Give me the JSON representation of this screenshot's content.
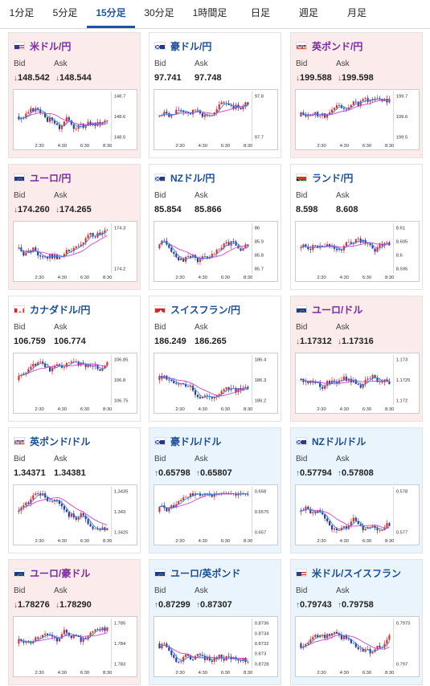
{
  "tabs": [
    {
      "label": "1分足",
      "active": false
    },
    {
      "label": "5分足",
      "active": false
    },
    {
      "label": "15分足",
      "active": true
    },
    {
      "label": "30分足",
      "active": false
    },
    {
      "label": "1時間足",
      "active": false
    },
    {
      "label": "日足",
      "active": false
    },
    {
      "label": "週足",
      "active": false
    },
    {
      "label": "月足",
      "active": false
    }
  ],
  "bid_label": "Bid",
  "ask_label": "Ask",
  "x_ticks": [
    "2:30",
    "4:30",
    "6:30",
    "8:30"
  ],
  "cards": [
    {
      "pair": "米ドル/円",
      "flag": "us-jp",
      "trend": "down",
      "bid": "148.542",
      "ask": "148.544",
      "y_ticks": [
        "148.7",
        "148.6",
        "148.5"
      ],
      "seed": 3,
      "drift": 0.2
    },
    {
      "pair": "豪ドル/円",
      "flag": "au-jp",
      "trend": "flat",
      "bid": "97.741",
      "ask": "97.748",
      "y_ticks": [
        "97.8",
        "97.7"
      ],
      "seed": 7,
      "drift": 0.8
    },
    {
      "pair": "英ポンド/円",
      "flag": "uk-jp",
      "trend": "down",
      "bid": "199.588",
      "ask": "199.598",
      "y_ticks": [
        "199.7",
        "199.6",
        "199.5"
      ],
      "seed": 11,
      "drift": 0.3
    },
    {
      "pair": "ユーロ/円",
      "flag": "eu-jp",
      "trend": "down",
      "bid": "174.260",
      "ask": "174.265",
      "y_ticks": [
        "174.3",
        "174.2"
      ],
      "seed": 13,
      "drift": 0.0
    },
    {
      "pair": "NZドル/円",
      "flag": "nz-jp",
      "trend": "flat",
      "bid": "85.854",
      "ask": "85.866",
      "y_ticks": [
        "86",
        "85.9",
        "85.8",
        "85.7"
      ],
      "seed": 17,
      "drift": -0.3
    },
    {
      "pair": "ランド/円",
      "flag": "za-jp",
      "trend": "flat",
      "bid": "8.598",
      "ask": "8.608",
      "y_ticks": [
        "8.61",
        "8.605",
        "8.6",
        "8.595"
      ],
      "seed": 19,
      "drift": 0.1
    },
    {
      "pair": "カナダドル/円",
      "flag": "ca-jp",
      "trend": "flat",
      "bid": "106.759",
      "ask": "106.774",
      "y_ticks": [
        "106.85",
        "106.8",
        "106.75"
      ],
      "seed": 23,
      "drift": -0.1
    },
    {
      "pair": "スイスフラン/円",
      "flag": "ch-jp",
      "trend": "flat",
      "bid": "186.249",
      "ask": "186.265",
      "y_ticks": [
        "186.4",
        "186.3",
        "186.2"
      ],
      "seed": 29,
      "drift": -0.6
    },
    {
      "pair": "ユーロ/ドル",
      "flag": "eu-us",
      "trend": "down",
      "bid": "1.17312",
      "ask": "1.17316",
      "y_ticks": [
        "1.173",
        "1.1725",
        "1.172"
      ],
      "seed": 31,
      "drift": 0.2
    },
    {
      "pair": "英ポンド/ドル",
      "flag": "uk-us",
      "trend": "flat",
      "bid": "1.34371",
      "ask": "1.34381",
      "y_ticks": [
        "1.3435",
        "1.343",
        "1.3425"
      ],
      "seed": 37,
      "drift": -0.2
    },
    {
      "pair": "豪ドル/ドル",
      "flag": "au-us",
      "trend": "up",
      "bid": "0.65798",
      "ask": "0.65807",
      "y_ticks": [
        "0.658",
        "0.6575",
        "0.657"
      ],
      "seed": 41,
      "drift": 0.6
    },
    {
      "pair": "NZドル/ドル",
      "flag": "nz-us",
      "trend": "up",
      "bid": "0.57794",
      "ask": "0.57808",
      "y_ticks": [
        "0.578",
        "0.577"
      ],
      "seed": 43,
      "drift": -0.3
    },
    {
      "pair": "ユーロ/豪ドル",
      "flag": "eu-au",
      "trend": "down",
      "bid": "1.78276",
      "ask": "1.78290",
      "y_ticks": [
        "1.785",
        "1.784",
        "1.783"
      ],
      "seed": 47,
      "drift": -0.5
    },
    {
      "pair": "ユーロ/英ポンド",
      "flag": "eu-uk",
      "trend": "up",
      "bid": "0.87299",
      "ask": "0.87307",
      "y_ticks": [
        "0.8736",
        "0.8734",
        "0.8732",
        "0.873",
        "0.8728"
      ],
      "seed": 53,
      "drift": -0.2
    },
    {
      "pair": "米ドル/スイスフラン",
      "flag": "us-ch",
      "trend": "up",
      "bid": "0.79743",
      "ask": "0.79758",
      "y_ticks": [
        "0.7975",
        "0.797"
      ],
      "seed": 59,
      "drift": 0.3
    }
  ],
  "colors": {
    "accent": "#1a56a6",
    "candle_up": "#e32b2b",
    "candle_down": "#2a3aa3",
    "ma_long": "#d43bd4",
    "ma_short": "#2a8ae0",
    "down_bg": "#fcebeb",
    "up_bg": "#e9f4fc",
    "arrow_down": "#d12a2a",
    "arrow_up": "#1a7a3a"
  }
}
